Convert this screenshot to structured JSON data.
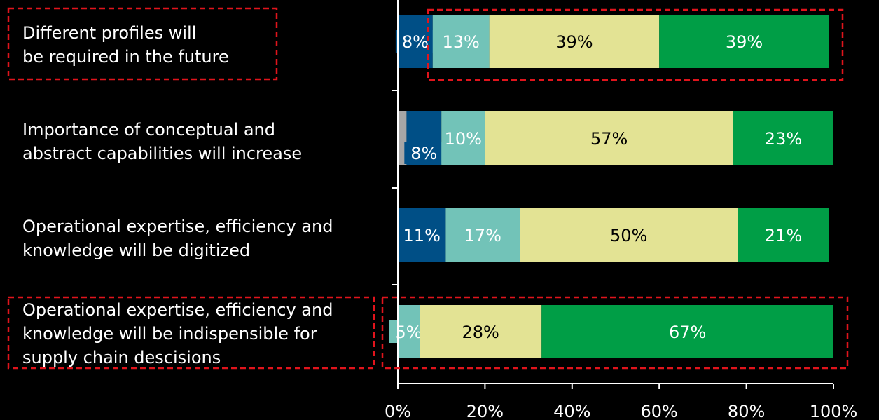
{
  "chart_data": {
    "type": "bar",
    "orientation": "horizontal",
    "stacked": true,
    "title": "",
    "xlabel": "",
    "ylabel": "",
    "xlim": [
      0,
      100
    ],
    "x_ticks": [
      "0%",
      "20%",
      "40%",
      "60%",
      "80%",
      "100%"
    ],
    "categories": [
      {
        "lines": [
          "Different profiles will",
          "be required in the future"
        ],
        "highlighted": true
      },
      {
        "lines": [
          "Importance of conceptual and",
          "abstract capabilities will increase"
        ],
        "highlighted": false
      },
      {
        "lines": [
          "Operational expertise, efficiency and",
          "knowledge will be digitized"
        ],
        "highlighted": false
      },
      {
        "lines": [
          "Operational expertise, efficiency and",
          "knowledge will be indispensible for",
          "supply chain descisions"
        ],
        "highlighted": true
      }
    ],
    "series": [
      {
        "color": "#a6a6a6",
        "values": [
          0,
          2,
          0,
          0
        ],
        "labels": [
          "",
          "",
          "",
          ""
        ]
      },
      {
        "color": "#004f86",
        "values": [
          8,
          8,
          11,
          0
        ],
        "labels": [
          "8%",
          "8%",
          "11%",
          ""
        ]
      },
      {
        "color": "#72c3b8",
        "values": [
          13,
          10,
          17,
          5
        ],
        "labels": [
          "13%",
          "10%",
          "17%",
          "5%"
        ]
      },
      {
        "color": "#e3e394",
        "values": [
          39,
          57,
          50,
          28
        ],
        "labels": [
          "39%",
          "57%",
          "50%",
          "28%"
        ]
      },
      {
        "color": "#009e46",
        "values": [
          39,
          23,
          21,
          67
        ],
        "labels": [
          "39%",
          "23%",
          "21%",
          "67%"
        ]
      }
    ],
    "grid": false,
    "legend": "none",
    "colors": {
      "background": "#000000",
      "text": "#ffffff",
      "axis": "#ffffff",
      "highlight_box": "#e0141c"
    }
  }
}
